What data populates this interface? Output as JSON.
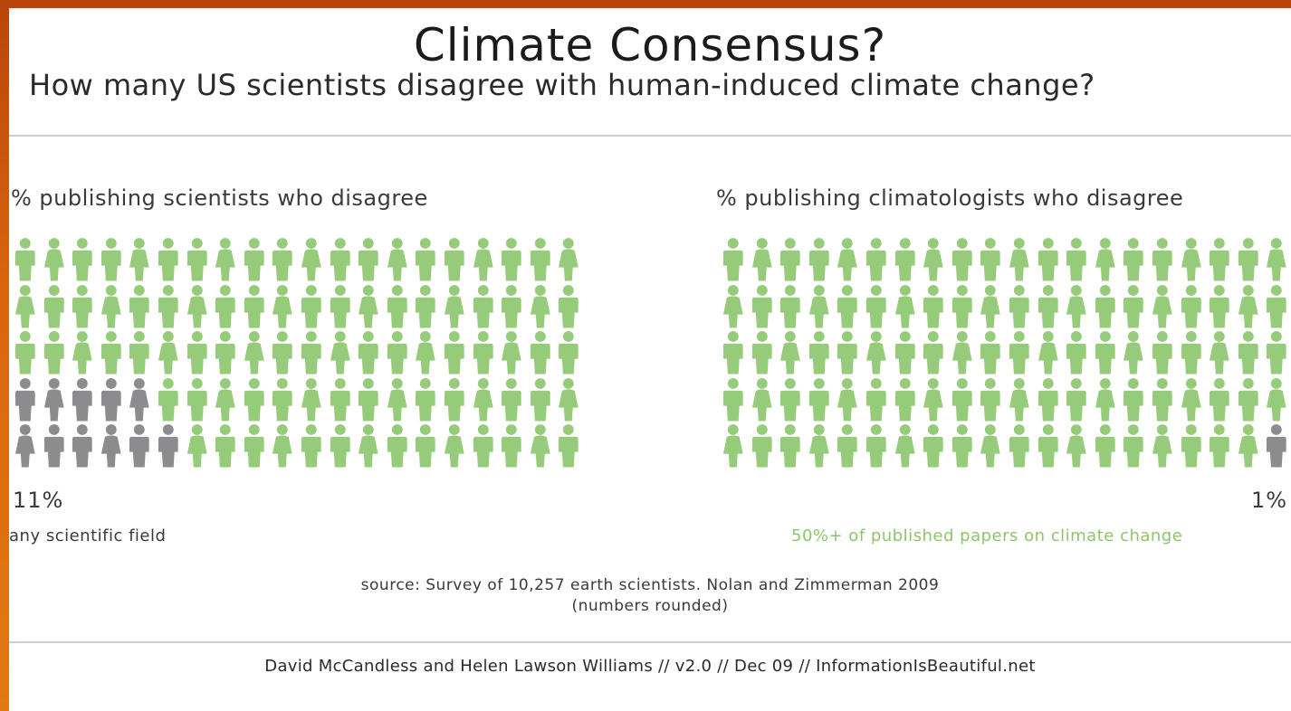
{
  "title": "Climate Consensus?",
  "subtitle": "How many US scientists disagree with human-induced climate change?",
  "colors": {
    "agree": "#95cb79",
    "disagree": "#8c8c8e",
    "accent_text": "#8cc56c"
  },
  "panels": [
    {
      "heading": "% publishing scientists who disagree",
      "percent_label": "11%",
      "percent_value": 11,
      "note": "any scientific field",
      "grid_rows": 5,
      "grid_cols": 20,
      "disagree_per_row": [
        0,
        0,
        0,
        5,
        6
      ]
    },
    {
      "heading": "% publishing climatologists who disagree",
      "percent_label": "1%",
      "percent_value": 1,
      "note": "50%+ of published papers on climate change",
      "grid_rows": 5,
      "grid_cols": 20,
      "disagree_per_row_from_right": [
        0,
        0,
        0,
        0,
        1
      ]
    }
  ],
  "source_line1": "source: Survey of 10,257 earth scientists. Nolan and Zimmerman 2009",
  "source_line2": "(numbers rounded)",
  "credits": "David McCandless and Helen Lawson Williams // v2.0 // Dec 09 // InformationIsBeautiful.net"
}
